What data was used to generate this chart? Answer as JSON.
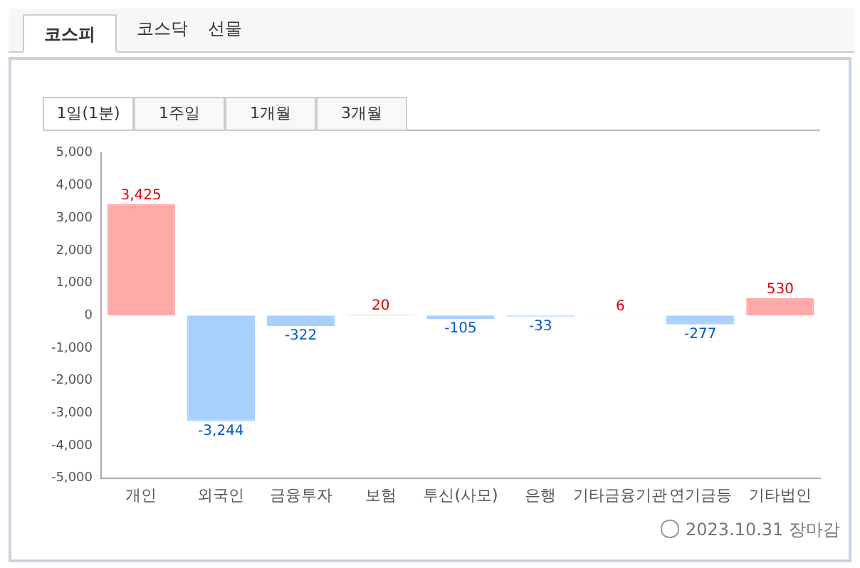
{
  "chart_data": {
    "type": "bar",
    "categories": [
      "개인",
      "외국인",
      "금융투자",
      "보험",
      "투신(사모)",
      "은행",
      "기타금융기관",
      "연기금등",
      "기타법인"
    ],
    "values": [
      3425,
      -3244,
      -322,
      20,
      -105,
      -33,
      6,
      -277,
      530
    ],
    "colors": [
      "#ffa8a8",
      "#a8d0ff",
      "#a8d0ff",
      "#ffa8a8",
      "#a8d0ff",
      "#a8d0ff",
      "#ffa8a8",
      "#a8d0ff",
      "#ffa8a8"
    ],
    "value_labels": [
      "3,425",
      "-3,244",
      "-322",
      "20",
      "-105",
      "-33",
      "6",
      "-277",
      "530"
    ],
    "ylim": [
      -5000,
      5000
    ],
    "yticks": [
      {
        "value": -5000,
        "label": "-5,000"
      },
      {
        "value": -4000,
        "label": "-4,000"
      },
      {
        "value": -3000,
        "label": "-3,000"
      },
      {
        "value": -2000,
        "label": "-2,000"
      },
      {
        "value": -1000,
        "label": "-1,000"
      },
      0,
      {
        "value": 1000,
        "label": "1,000"
      },
      {
        "value": 2000,
        "label": "2,000"
      },
      {
        "value": 3000,
        "label": "3,000"
      },
      {
        "value": 4000,
        "label": "4,000"
      },
      {
        "value": 5000,
        "label": "5,000"
      }
    ],
    "grid": false,
    "annotations": [
      "코스피",
      "코스닥",
      "선물",
      "1일(1분)",
      "1주일",
      "1개월",
      "3개월",
      "2023.10.31 장마감"
    ]
  }
}
